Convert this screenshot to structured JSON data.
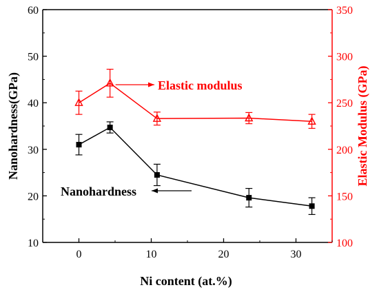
{
  "chart_data": {
    "type": "line",
    "x": [
      0,
      4.3,
      10.8,
      23.5,
      32.2
    ],
    "xlabel": "Ni content (at.%)",
    "xlim": [
      -5,
      35
    ],
    "xticks": [
      "0",
      "10",
      "20",
      "30"
    ],
    "y_left": {
      "label": "Nanohardness(GPa)",
      "lim": [
        10,
        60
      ],
      "ticks": [
        "10",
        "20",
        "30",
        "40",
        "50",
        "60"
      ],
      "color": "#000000"
    },
    "y_right": {
      "label": "Elastic Modulus (GPa)",
      "lim": [
        100,
        350
      ],
      "ticks": [
        "100",
        "150",
        "200",
        "250",
        "300",
        "350"
      ],
      "color": "#ff0000"
    },
    "series": [
      {
        "name": "Nanohardness",
        "axis": "left",
        "marker": "square",
        "color": "#000000",
        "values": [
          31.0,
          34.7,
          24.5,
          19.6,
          17.8
        ],
        "errors": [
          2.2,
          1.2,
          2.3,
          2.0,
          1.8
        ]
      },
      {
        "name": "Elastic modulus",
        "axis": "right",
        "marker": "triangle",
        "color": "#ff0000",
        "values": [
          250,
          271,
          233,
          233.5,
          230
        ],
        "errors": [
          12.5,
          15,
          7,
          6,
          7.5
        ]
      }
    ],
    "annotations": [
      {
        "text": "Elastic modulus",
        "series": "Elastic modulus",
        "arrow": "left"
      },
      {
        "text": "Nanohardness",
        "series": "Nanohardness",
        "arrow": "right"
      }
    ],
    "grid": false,
    "legend": "none"
  }
}
